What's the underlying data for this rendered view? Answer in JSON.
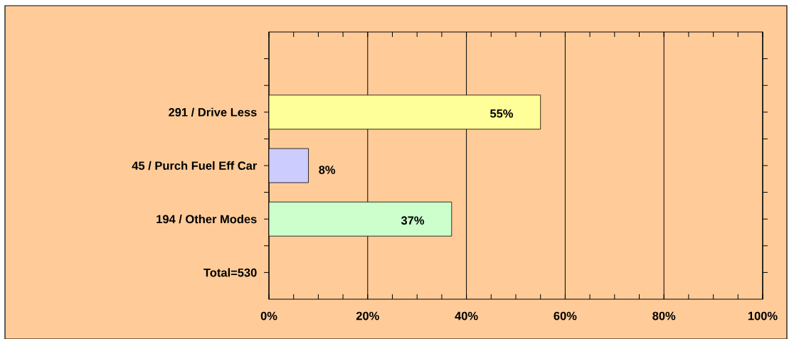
{
  "chart_data": {
    "type": "bar",
    "orientation": "horizontal",
    "categories": [
      null,
      "291 / Drive Less",
      "45 / Purch Fuel Eff Car",
      "194 / Other Modes",
      "Total=530"
    ],
    "values": [
      null,
      55,
      8,
      37,
      null
    ],
    "colors": [
      null,
      "#ffff99",
      "#ccccff",
      "#ccffcc",
      null
    ],
    "value_labels": [
      null,
      "55%",
      "8%",
      "37%",
      null
    ],
    "xlim": [
      0,
      100
    ],
    "xticks": [
      {
        "value": 0,
        "label": "0%"
      },
      {
        "value": 20,
        "label": "20%"
      },
      {
        "value": 40,
        "label": "40%"
      },
      {
        "value": 60,
        "label": "60%"
      },
      {
        "value": 80,
        "label": "80%"
      },
      {
        "value": 100,
        "label": "100%"
      }
    ],
    "grid": "x"
  }
}
